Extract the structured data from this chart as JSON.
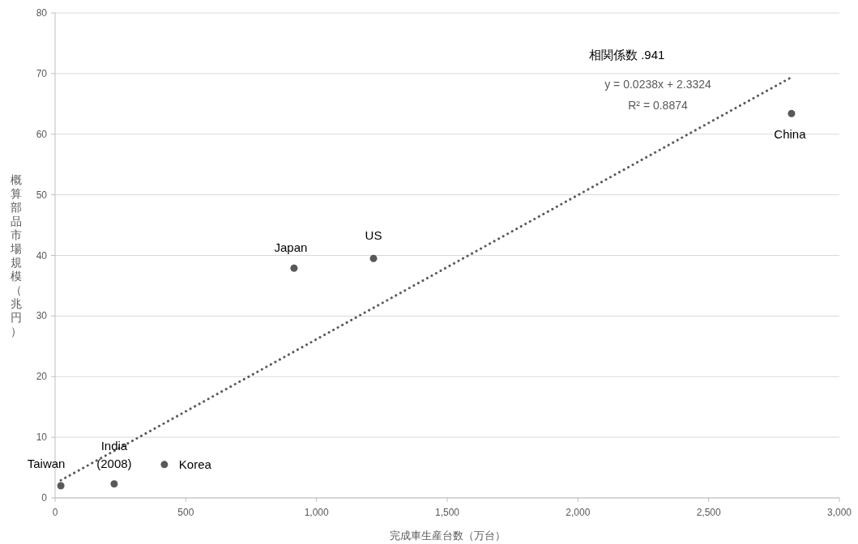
{
  "chart_data": {
    "type": "scatter",
    "xlabel": "完成車生産台数（万台）",
    "ylabel": "概算部品市場規模（兆円）",
    "xlim": [
      0,
      3000
    ],
    "xticks": [
      0,
      500,
      {
        "value": 1000,
        "label": "1,000"
      },
      {
        "value": 1500,
        "label": "1,500"
      },
      {
        "value": 2000,
        "label": "2,000"
      },
      {
        "value": 2500,
        "label": "2,500"
      },
      {
        "value": 3000,
        "label": "3,000"
      }
    ],
    "ylim": [
      0,
      80
    ],
    "yticks": [
      0,
      10,
      20,
      30,
      40,
      50,
      60,
      70,
      80
    ],
    "grid": "y",
    "marker": "circle",
    "series": [
      {
        "color": "#595959",
        "x": [
          22,
          226,
          418,
          914,
          1218,
          2817
        ],
        "values": [
          2.0,
          2.3,
          5.5,
          37.9,
          39.5,
          63.4
        ]
      },
      {
        "type": "line",
        "color": "#595959",
        "line_style": "dotted",
        "marker": "none",
        "x": [
          22,
          2817
        ],
        "values": [
          2.9,
          69.4
        ]
      }
    ],
    "annotations": [
      "相関係数 .941",
      "y = 0.0238x + 2.3324",
      "R² = 0.8874",
      {
        "text": "Taiwan",
        "x": 22,
        "y": 2.0
      },
      {
        "text": "India\n(2008)",
        "x": 226,
        "y": 2.3
      },
      {
        "text": "Korea",
        "x": 418,
        "y": 5.5
      },
      {
        "text": "Japan",
        "x": 914,
        "y": 37.9
      },
      {
        "text": "US",
        "x": 1218,
        "y": 39.5
      },
      {
        "text": "China",
        "x": 2817,
        "y": 63.4
      }
    ]
  }
}
